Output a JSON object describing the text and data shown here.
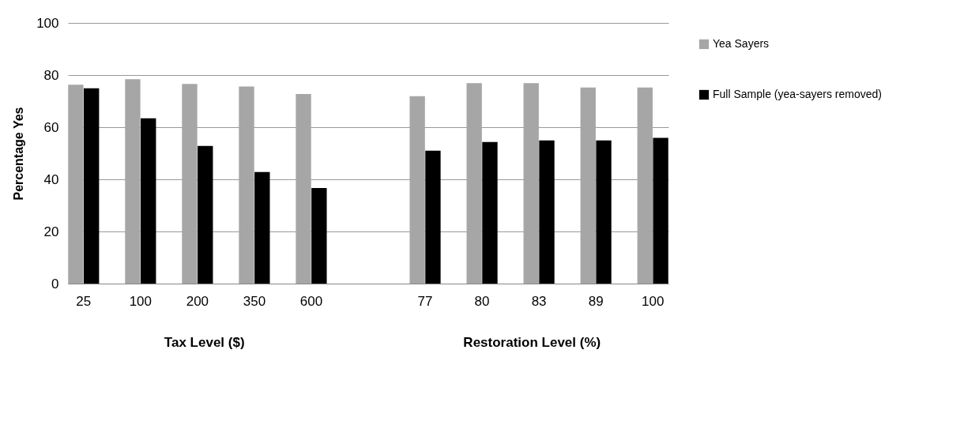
{
  "chart_data": {
    "type": "bar",
    "ylabel": "Percentage Yes",
    "categories": [
      "25",
      "100",
      "200",
      "350",
      "600",
      null,
      "77",
      "80",
      "83",
      "89",
      "100"
    ],
    "series": [
      {
        "name": "Yea Sayers",
        "color": "#a6a6a6",
        "values": [
          76.3,
          78.4,
          76.6,
          75.6,
          72.7,
          null,
          71.9,
          76.9,
          76.9,
          75.2,
          75.2
        ]
      },
      {
        "name": "Full Sample (yea-sayers removed)",
        "color": "#000000",
        "values": [
          74.9,
          63.4,
          52.8,
          42.8,
          36.7,
          null,
          51.0,
          54.3,
          54.9,
          54.9,
          55.9
        ]
      }
    ],
    "annotations": [
      "Tax Level ($)",
      "Restoration Level (%)"
    ],
    "ylim": [
      0,
      100
    ],
    "yticks": [
      0,
      20,
      40,
      60,
      80,
      100
    ],
    "grid": "y",
    "legend": "right"
  }
}
